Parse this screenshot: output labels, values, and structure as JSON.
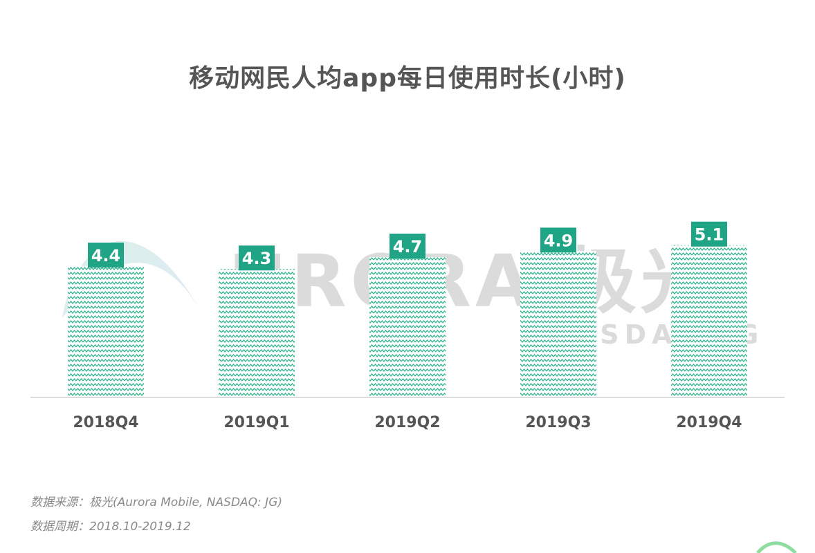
{
  "colors": {
    "accent": "#1fa586",
    "bar_fill": "#2bb48c",
    "title": "#555555",
    "axis": "#d0d0d0"
  },
  "watermark": {
    "logo_icon": "aurora-logo-icon",
    "text": "URORA 极光",
    "sub": "NASDAQ:JG"
  },
  "chart_data": {
    "type": "bar",
    "title": "移动网民人均app每日使用时长(小时)",
    "xlabel": "",
    "ylabel": "",
    "categories": [
      "2018Q4",
      "2019Q1",
      "2019Q2",
      "2019Q3",
      "2019Q4"
    ],
    "values": [
      4.4,
      4.3,
      4.7,
      4.9,
      5.1
    ],
    "value_labels": [
      "4.4",
      "4.3",
      "4.7",
      "4.9",
      "5.1"
    ],
    "ylim": [
      0,
      5.5
    ],
    "grid": false,
    "legend": "none"
  },
  "footer": {
    "source": "数据来源：极光(Aurora Mobile, NASDAQ: JG)",
    "period": "数据周期：2018.10-2019.12"
  }
}
